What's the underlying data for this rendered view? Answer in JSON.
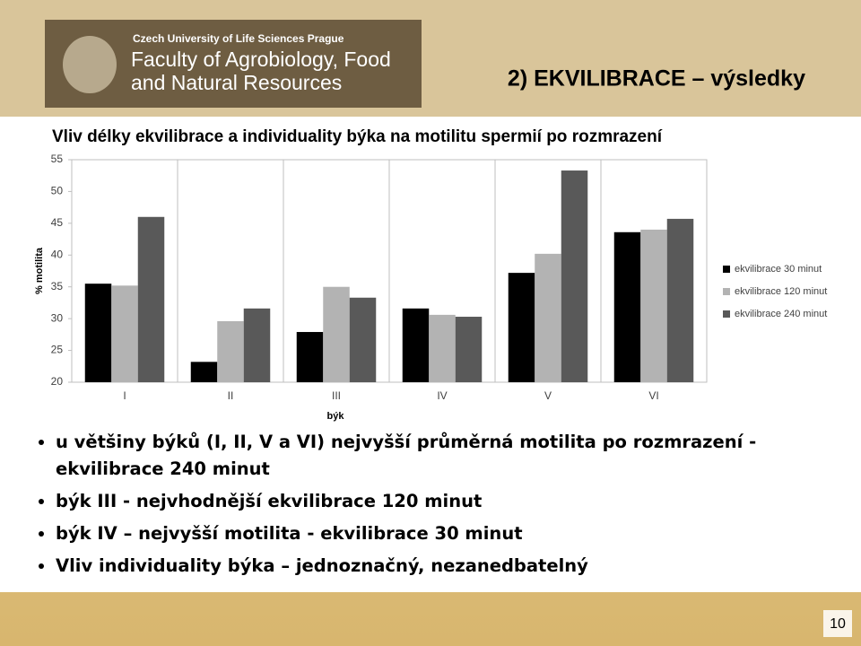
{
  "header": {
    "university": "Czech University of Life Sciences Prague",
    "faculty_line1": "Faculty of Agrobiology, Food",
    "faculty_line2": "and Natural Resources",
    "title": "2) EKVILIBRACE – výsledky"
  },
  "chart_data": {
    "type": "bar",
    "title": "Vliv délky ekvilibrace a individuality býka na motilitu spermií po rozmrazení",
    "x_label": "býk",
    "y_label": "% motilita",
    "categories": [
      "I",
      "II",
      "III",
      "IV",
      "V",
      "VI"
    ],
    "series": [
      {
        "name": "ekvilibrace 30 minut",
        "color": "#000000",
        "values": [
          35.5,
          23.2,
          27.9,
          31.6,
          37.2,
          43.6
        ]
      },
      {
        "name": "ekvilibrace 120 minut",
        "color": "#b3b3b3",
        "values": [
          35.2,
          29.6,
          35.0,
          30.6,
          40.2,
          44.0
        ]
      },
      {
        "name": "ekvilibrace 240 minut",
        "color": "#595959",
        "values": [
          46.0,
          31.6,
          33.3,
          30.3,
          53.3,
          45.7
        ]
      }
    ],
    "ylim": [
      20,
      55
    ],
    "yticks": [
      20,
      25,
      30,
      35,
      40,
      45,
      50,
      55
    ],
    "legend": "right"
  },
  "bullets": [
    "u většiny býků (I, II, V a VI) nejvyšší průměrná motilita po rozmrazení - ekvilibrace 240 minut",
    "býk III - nejvhodnější ekvilibrace 120 minut",
    "býk IV – nejvyšší motilita - ekvilibrace 30 minut",
    "Vliv individuality býka – jednoznačný, nezanedbatelný"
  ],
  "page_number": "10"
}
